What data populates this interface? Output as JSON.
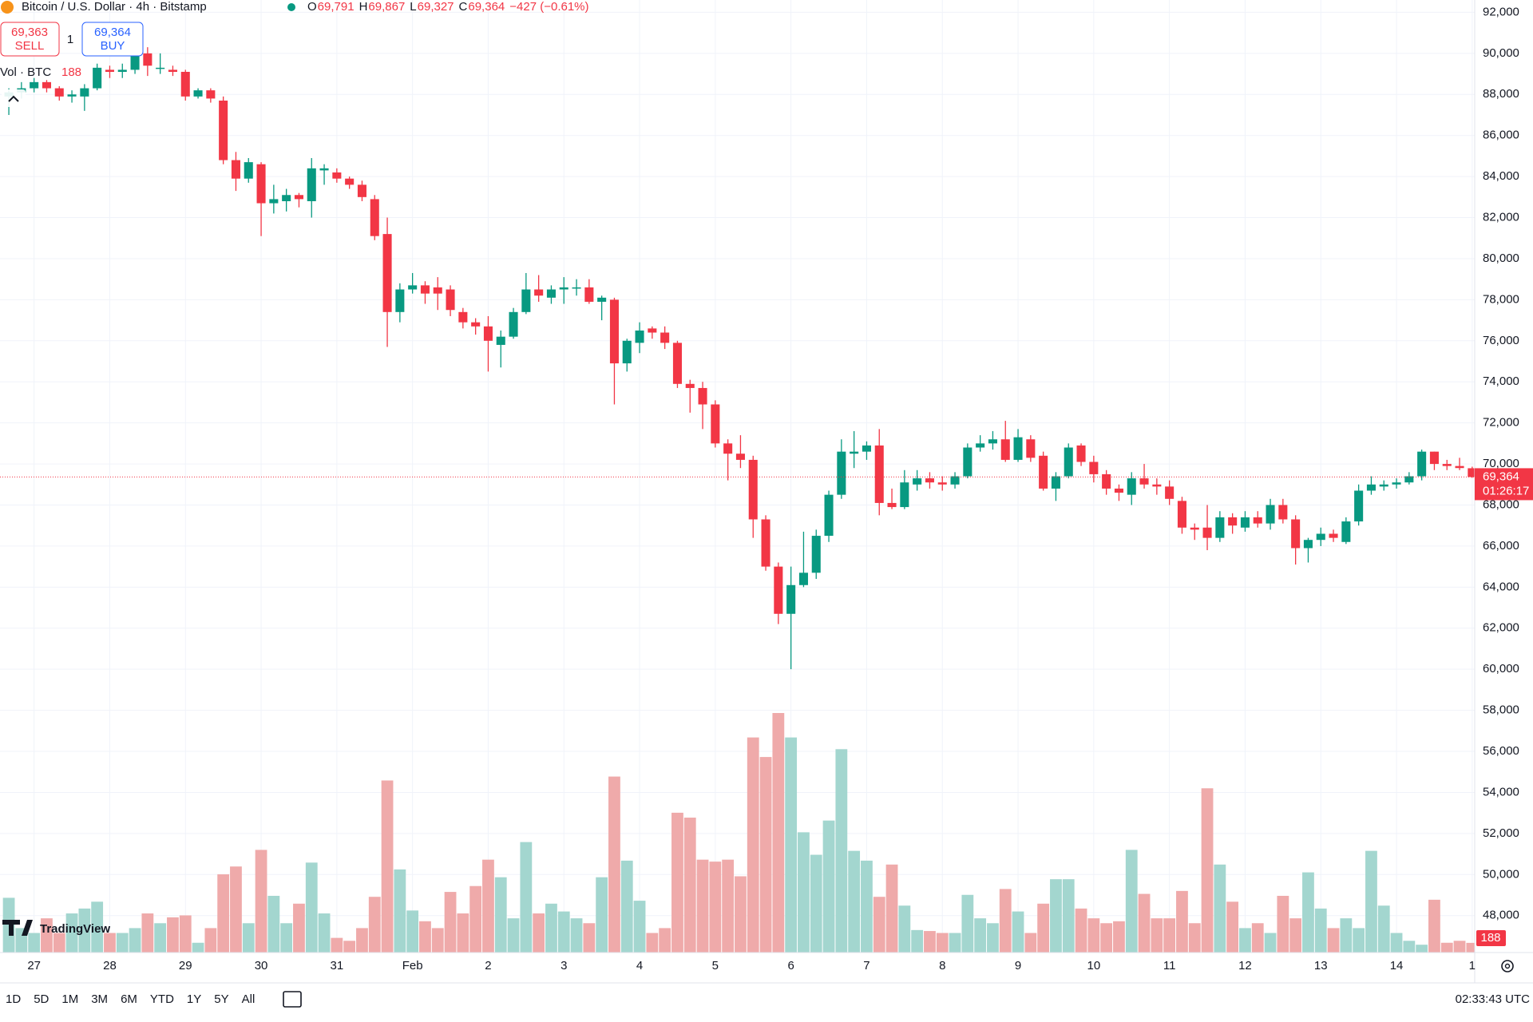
{
  "header": {
    "symbol": "Bitcoin / U.S. Dollar · 4h · Bitstamp",
    "ohlc": [
      {
        "key": "O",
        "value": "69,791"
      },
      {
        "key": "H",
        "value": "69,867"
      },
      {
        "key": "L",
        "value": "69,327"
      },
      {
        "key": "C",
        "value": "69,364"
      }
    ],
    "change": "−427 (−0.61%)"
  },
  "trade": {
    "sell_price": "69,363",
    "sell_label": "SELL",
    "spread": "1",
    "buy_price": "69,364",
    "buy_label": "BUY"
  },
  "volume_legend": "Vol · BTC",
  "logo": "TradingView",
  "timeframes": [
    "1D",
    "5D",
    "1M",
    "3M",
    "6M",
    "YTD",
    "1Y",
    "5Y",
    "All"
  ],
  "clock": "02:33:43 UTC",
  "chart_data": {
    "type": "candlestick",
    "up_color": "#089981",
    "down_color": "#f23645",
    "volume_up_color": "#a3d6cf",
    "volume_down_color": "#efaaaa",
    "open": [
      87900,
      88100,
      88300,
      88600,
      88300,
      87900,
      87900,
      88300,
      89200,
      89100,
      89200,
      90000,
      89300,
      89200,
      89100,
      87900,
      88200,
      87700,
      84800,
      83900,
      84600,
      82700,
      82800,
      83100,
      82800,
      84300,
      84200,
      83900,
      83600,
      82900,
      81200,
      77400,
      78500,
      78700,
      78600,
      78500,
      77400,
      76900,
      76700,
      75800,
      76200,
      77400,
      78500,
      78100,
      78500,
      78600,
      78600,
      77900,
      78000,
      74900,
      75900,
      76600,
      76400,
      75900,
      73900,
      73700,
      72900,
      71000,
      70500,
      70200,
      67300,
      65000,
      62700,
      64100,
      64700,
      66500,
      68500,
      70500,
      70600,
      70900,
      68100,
      67900,
      69000,
      69300,
      69100,
      69000,
      69400,
      70800,
      71000,
      71200,
      70200,
      71200,
      70400,
      68800,
      69400,
      70900,
      70100,
      69500,
      68800,
      68500,
      69300,
      69000,
      68900,
      68200,
      66900,
      66900,
      66400,
      67400,
      66900,
      67400,
      67100,
      68000,
      67300,
      65900,
      66300,
      66600,
      66200,
      67200,
      68700,
      68900,
      69000,
      69100,
      69400,
      70600,
      70000,
      69900,
      69791
    ],
    "high": [
      88300,
      88600,
      88800,
      88700,
      88400,
      88200,
      88500,
      89500,
      89400,
      89500,
      90300,
      90300,
      90000,
      89400,
      89200,
      88300,
      88300,
      87900,
      85200,
      84900,
      84700,
      83600,
      83400,
      83200,
      84900,
      84600,
      84400,
      84000,
      83800,
      83100,
      82000,
      78800,
      79300,
      78900,
      79100,
      78700,
      77600,
      77100,
      77200,
      76500,
      77600,
      79300,
      79200,
      78700,
      79100,
      79000,
      79000,
      78200,
      78100,
      76100,
      76900,
      76700,
      76700,
      76000,
      74100,
      74000,
      73100,
      71200,
      71400,
      70400,
      67500,
      65200,
      65000,
      66700,
      66800,
      68700,
      71200,
      71600,
      71100,
      71700,
      68800,
      69700,
      69700,
      69600,
      69400,
      69600,
      71000,
      71400,
      71600,
      72100,
      71700,
      71400,
      70600,
      69600,
      71000,
      71000,
      70400,
      69700,
      69000,
      69600,
      70000,
      69300,
      69200,
      68400,
      67100,
      68000,
      67700,
      67600,
      67700,
      67700,
      68300,
      68300,
      67500,
      66400,
      66900,
      66800,
      67400,
      69000,
      69400,
      69200,
      69300,
      69600,
      70700,
      70600,
      70200,
      70300,
      69867
    ],
    "low": [
      87000,
      87800,
      88100,
      88100,
      87700,
      87600,
      87200,
      88200,
      88800,
      88800,
      89000,
      88900,
      89000,
      88900,
      87700,
      87800,
      87600,
      84600,
      83300,
      83700,
      81100,
      82200,
      82300,
      82500,
      82000,
      83600,
      83700,
      83400,
      82800,
      80900,
      75700,
      76900,
      78300,
      77800,
      77500,
      77200,
      76600,
      76300,
      74500,
      74700,
      76100,
      77300,
      77900,
      77800,
      77800,
      78200,
      77800,
      77000,
      72900,
      74500,
      75400,
      76100,
      75600,
      73700,
      72500,
      71700,
      70800,
      69200,
      69800,
      66400,
      64800,
      62200,
      60000,
      64000,
      64400,
      66200,
      68300,
      69800,
      70200,
      67500,
      67800,
      67800,
      68700,
      68800,
      68700,
      68800,
      69300,
      70600,
      70700,
      70100,
      70100,
      70100,
      68700,
      68200,
      69300,
      69900,
      69100,
      68500,
      68200,
      68000,
      68800,
      68500,
      68000,
      66600,
      66300,
      65800,
      66200,
      66600,
      66700,
      66900,
      66800,
      67100,
      65100,
      65200,
      66000,
      66200,
      66100,
      67000,
      68500,
      68700,
      68800,
      69000,
      69200,
      69700,
      69700,
      69700,
      69327
    ],
    "close": [
      88100,
      88300,
      88600,
      88300,
      87900,
      88000,
      88300,
      89300,
      89100,
      89200,
      90000,
      89400,
      89300,
      89100,
      87900,
      88200,
      87800,
      84800,
      83900,
      84700,
      82700,
      82900,
      83100,
      82900,
      84400,
      84400,
      83900,
      83600,
      83000,
      81100,
      77400,
      78500,
      78700,
      78300,
      78300,
      77500,
      76900,
      76700,
      76000,
      76200,
      77400,
      78500,
      78200,
      78500,
      78600,
      78600,
      77900,
      78100,
      74900,
      76000,
      76500,
      76400,
      75900,
      73900,
      73700,
      72900,
      71000,
      70500,
      70200,
      67300,
      65000,
      62700,
      64100,
      64700,
      66500,
      68500,
      70600,
      70600,
      70900,
      68100,
      67900,
      69100,
      69300,
      69100,
      69000,
      69400,
      70800,
      71000,
      71200,
      70200,
      71300,
      70300,
      68800,
      69400,
      70800,
      70100,
      69500,
      68800,
      68600,
      69300,
      69000,
      68900,
      68300,
      66900,
      66800,
      66400,
      67400,
      67000,
      67400,
      67100,
      68000,
      67300,
      65900,
      66300,
      66600,
      66400,
      67200,
      68700,
      69000,
      69000,
      69100,
      69400,
      70600,
      70000,
      69900,
      69800,
      69364
    ],
    "volume": [
      1064,
      475,
      380,
      665,
      380,
      760,
      855,
      988,
      380,
      380,
      475,
      760,
      570,
      684,
      722,
      190,
      475,
      1520,
      1672,
      570,
      1995,
      1102,
      570,
      950,
      1748,
      760,
      285,
      228,
      475,
      1083,
      3344,
      1615,
      817,
      608,
      475,
      1178,
      760,
      1292,
      1805,
      1463,
      665,
      2147,
      760,
      950,
      798,
      665,
      570,
      1463,
      3420,
      1786,
      1007,
      380,
      475,
      2717,
      2622,
      1805,
      1767,
      1805,
      1482,
      4180,
      3800,
      4655,
      4180,
      2337,
      1900,
      2565,
      3952,
      1976,
      1786,
      1083,
      1710,
      912,
      437,
      418,
      380,
      380,
      1121,
      665,
      570,
      1235,
      798,
      380,
      950,
      1425,
      1425,
      855,
      665,
      570,
      608,
      1995,
      1140,
      665,
      665,
      1197,
      570,
      3192,
      1710,
      988,
      475,
      570,
      380,
      1102,
      665,
      1558,
      855,
      475,
      665,
      475,
      1976,
      912,
      380,
      228,
      152,
      1026,
      190,
      228,
      188
    ],
    "last_price_label": "69,364",
    "countdown": "01:26:17",
    "xlim": [
      -0.7,
      116.2
    ],
    "xticks": [
      {
        "value": 2,
        "label": "27"
      },
      {
        "value": 8,
        "label": "28"
      },
      {
        "value": 14,
        "label": "29"
      },
      {
        "value": 20,
        "label": "30"
      },
      {
        "value": 26,
        "label": "31"
      },
      {
        "value": 32,
        "label": "Feb"
      },
      {
        "value": 38,
        "label": "2"
      },
      {
        "value": 44,
        "label": "3"
      },
      {
        "value": 50,
        "label": "4"
      },
      {
        "value": 56,
        "label": "5"
      },
      {
        "value": 62,
        "label": "6"
      },
      {
        "value": 68,
        "label": "7"
      },
      {
        "value": 74,
        "label": "8"
      },
      {
        "value": 80,
        "label": "9"
      },
      {
        "value": 86,
        "label": "10"
      },
      {
        "value": 92,
        "label": "11"
      },
      {
        "value": 98,
        "label": "12"
      },
      {
        "value": 104,
        "label": "13"
      },
      {
        "value": 110,
        "label": "14"
      },
      {
        "value": 116,
        "label": "1"
      }
    ],
    "ylim": [
      46200,
      92600
    ],
    "yticks": [
      {
        "value": 48000,
        "label": "48,000"
      },
      {
        "value": 50000,
        "label": "50,000"
      },
      {
        "value": 52000,
        "label": "52,000"
      },
      {
        "value": 54000,
        "label": "54,000"
      },
      {
        "value": 56000,
        "label": "56,000"
      },
      {
        "value": 58000,
        "label": "58,000"
      },
      {
        "value": 60000,
        "label": "60,000"
      },
      {
        "value": 62000,
        "label": "62,000"
      },
      {
        "value": 64000,
        "label": "64,000"
      },
      {
        "value": 66000,
        "label": "66,000"
      },
      {
        "value": 68000,
        "label": "68,000"
      },
      {
        "value": 70000,
        "label": "70,000"
      },
      {
        "value": 72000,
        "label": "72,000"
      },
      {
        "value": 74000,
        "label": "74,000"
      },
      {
        "value": 76000,
        "label": "76,000"
      },
      {
        "value": 78000,
        "label": "78,000"
      },
      {
        "value": 80000,
        "label": "80,000"
      },
      {
        "value": 82000,
        "label": "82,000"
      },
      {
        "value": 84000,
        "label": "84,000"
      },
      {
        "value": 86000,
        "label": "86,000"
      },
      {
        "value": 88000,
        "label": "88,000"
      },
      {
        "value": 90000,
        "label": "90,000"
      },
      {
        "value": 92000,
        "label": "92,000"
      }
    ],
    "grid": true
  }
}
